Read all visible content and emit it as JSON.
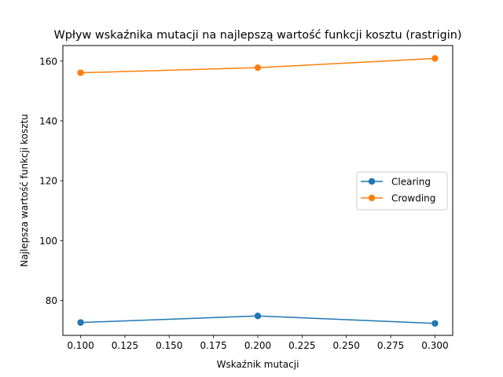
{
  "chart_data": {
    "type": "line",
    "title": "Wpływ wskaźnika mutacji na najlepszą wartość funkcji kosztu (rastrigin)",
    "xlabel": "Wskaźnik mutacji",
    "ylabel": "Najlepsza wartość funkcji kosztu",
    "x": [
      0.1,
      0.2,
      0.3
    ],
    "series": [
      {
        "name": "Clearing",
        "values": [
          72.6,
          74.8,
          72.3
        ],
        "color": "#1f77b4",
        "marker": "circle"
      },
      {
        "name": "Crowding",
        "values": [
          156.1,
          157.8,
          160.9
        ],
        "color": "#ff7f0e",
        "marker": "circle"
      }
    ],
    "xlim": [
      0.09,
      0.31
    ],
    "ylim": [
      68.3,
      165.2
    ],
    "xticks": [
      "0.100",
      "0.125",
      "0.150",
      "0.175",
      "0.200",
      "0.225",
      "0.250",
      "0.275",
      "0.300"
    ],
    "yticks": [
      "80",
      "100",
      "120",
      "140",
      "160"
    ],
    "grid": false,
    "legend_position": "center-right"
  }
}
